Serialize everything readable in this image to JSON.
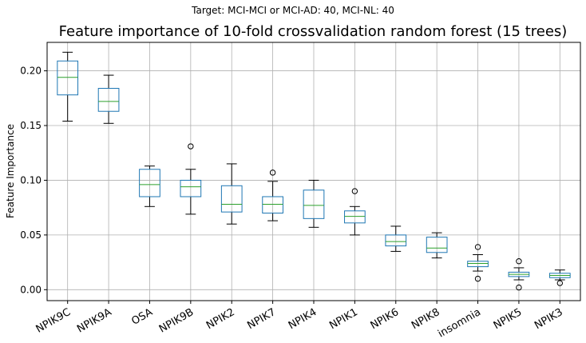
{
  "suptitle": "Target: MCI-MCI or MCI-AD: 40, MCI-NL: 40",
  "colors": {
    "box": "#1f77b4",
    "median": "#2ca02c",
    "whisker": "#000000",
    "grid": "#b0b0b0"
  },
  "chart_data": {
    "type": "box",
    "title": "Feature importance of 10-fold crossvalidation random forest (15 trees)",
    "xlabel": "",
    "ylabel": "Feature Importance",
    "ylim": [
      -0.01,
      0.226
    ],
    "yticks": [
      0.0,
      0.05,
      0.1,
      0.15,
      0.2
    ],
    "ytick_labels": [
      "0.00",
      "0.05",
      "0.10",
      "0.15",
      "0.20"
    ],
    "grid": true,
    "categories": [
      "NPIK9C",
      "NPIK9A",
      "OSA",
      "NPIK9B",
      "NPIK2",
      "NPIK7",
      "NPIK4",
      "NPIK1",
      "NPIK6",
      "NPIK8",
      "insomnia",
      "NPIK5",
      "NPIK3"
    ],
    "boxes": [
      {
        "whislo": 0.154,
        "q1": 0.178,
        "med": 0.194,
        "q3": 0.209,
        "whishi": 0.217,
        "fliers": []
      },
      {
        "whislo": 0.152,
        "q1": 0.163,
        "med": 0.172,
        "q3": 0.184,
        "whishi": 0.196,
        "fliers": []
      },
      {
        "whislo": 0.076,
        "q1": 0.085,
        "med": 0.096,
        "q3": 0.11,
        "whishi": 0.113,
        "fliers": []
      },
      {
        "whislo": 0.069,
        "q1": 0.085,
        "med": 0.094,
        "q3": 0.1,
        "whishi": 0.11,
        "fliers": [
          0.131
        ]
      },
      {
        "whislo": 0.06,
        "q1": 0.071,
        "med": 0.078,
        "q3": 0.095,
        "whishi": 0.115,
        "fliers": []
      },
      {
        "whislo": 0.063,
        "q1": 0.07,
        "med": 0.078,
        "q3": 0.085,
        "whishi": 0.099,
        "fliers": [
          0.107
        ]
      },
      {
        "whislo": 0.057,
        "q1": 0.065,
        "med": 0.077,
        "q3": 0.091,
        "whishi": 0.1,
        "fliers": []
      },
      {
        "whislo": 0.05,
        "q1": 0.061,
        "med": 0.067,
        "q3": 0.072,
        "whishi": 0.076,
        "fliers": [
          0.09
        ]
      },
      {
        "whislo": 0.035,
        "q1": 0.04,
        "med": 0.044,
        "q3": 0.05,
        "whishi": 0.058,
        "fliers": []
      },
      {
        "whislo": 0.029,
        "q1": 0.034,
        "med": 0.038,
        "q3": 0.048,
        "whishi": 0.052,
        "fliers": []
      },
      {
        "whislo": 0.017,
        "q1": 0.021,
        "med": 0.024,
        "q3": 0.026,
        "whishi": 0.032,
        "fliers": [
          0.039,
          0.01
        ]
      },
      {
        "whislo": 0.009,
        "q1": 0.012,
        "med": 0.014,
        "q3": 0.016,
        "whishi": 0.02,
        "fliers": [
          0.026,
          0.002
        ]
      },
      {
        "whislo": 0.009,
        "q1": 0.011,
        "med": 0.013,
        "q3": 0.015,
        "whishi": 0.018,
        "fliers": [
          0.006
        ]
      }
    ]
  }
}
